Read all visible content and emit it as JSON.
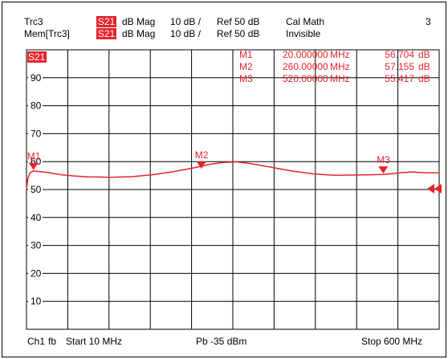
{
  "trace_header": {
    "row1": {
      "trace": "Trc3",
      "param": "S21",
      "format": "dB Mag",
      "scale": "10 dB /",
      "ref": "Ref 50 dB",
      "note": "Cal Math",
      "channel_no": "3"
    },
    "row2": {
      "trace": "Mem[Trc3]",
      "param": "S21",
      "format": "dB Mag",
      "scale": "10 dB /",
      "ref": "Ref 50 dB",
      "note": "Invisible"
    }
  },
  "diagram": {
    "trace_label": "S21",
    "grid_label_color": "#000000",
    "trace_color": "#e8242b"
  },
  "marker_table": [
    {
      "name": "M1",
      "freq": "20.000000",
      "unit": "MHz",
      "value": "56.704",
      "vunit": "dB"
    },
    {
      "name": "M2",
      "freq": "260.00000",
      "unit": "MHz",
      "value": "57.155",
      "vunit": "dB"
    },
    {
      "name": "M3",
      "freq": "520.00000",
      "unit": "MHz",
      "value": "55.417",
      "vunit": "dB"
    }
  ],
  "footer": {
    "channel": "Ch1",
    "sweep": "fb",
    "start": "Start 10 MHz",
    "power": "Pb  -35 dBm",
    "stop": "Stop 600 MHz"
  },
  "chart_data": {
    "type": "line",
    "x_range": [
      10,
      600
    ],
    "x_unit": "MHz",
    "ylim": [
      0,
      100
    ],
    "y_ticks": [
      10,
      20,
      30,
      40,
      50,
      60,
      70,
      80,
      90
    ],
    "grid": true,
    "series": [
      {
        "x": [
          10,
          12,
          15,
          20,
          40,
          60,
          80,
          100,
          130,
          160,
          190,
          220,
          250,
          270,
          290,
          310,
          330,
          360,
          390,
          420,
          450,
          480,
          500,
          520,
          540,
          560,
          580,
          600
        ],
        "values": [
          50,
          54,
          56,
          56.7,
          56.1,
          55.3,
          54.8,
          54.5,
          54.4,
          54.6,
          55.3,
          56.4,
          57.8,
          58.9,
          59.7,
          59.9,
          59.3,
          58.0,
          56.6,
          55.6,
          55.1,
          55.2,
          55.3,
          55.4,
          55.9,
          56.3,
          56.0,
          56.0
        ]
      }
    ],
    "markers": [
      {
        "label": "M1",
        "x": 20,
        "y": 56.704
      },
      {
        "label": "M2",
        "x": 260,
        "y": 57.155
      },
      {
        "label": "M3",
        "x": 520,
        "y": 55.417
      }
    ],
    "ref_level": 50
  }
}
